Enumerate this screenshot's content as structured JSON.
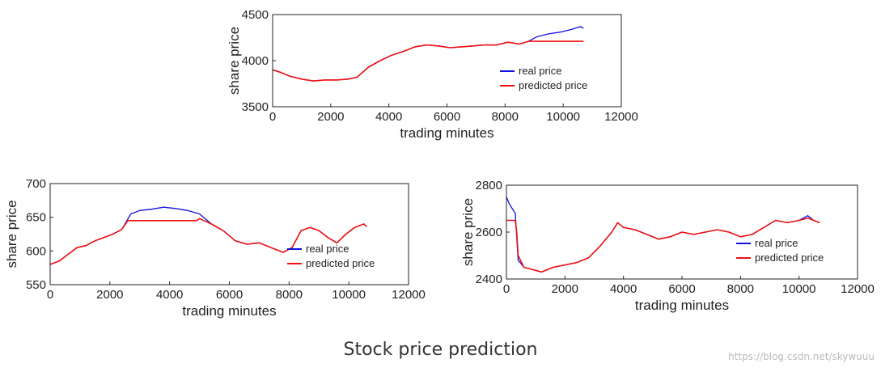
{
  "caption": "Stock price prediction",
  "watermark": "https://blog.csdn.net/skywuuu",
  "colors": {
    "real": "#1010e0",
    "predicted": "#ee1111",
    "axis": "#222222"
  },
  "chart_data": [
    {
      "type": "line",
      "xlabel": "trading minutes",
      "ylabel": "share price",
      "xlim": [
        0,
        12000
      ],
      "ylim": [
        3500,
        4500
      ],
      "xticks": [
        0,
        2000,
        4000,
        6000,
        8000,
        10000,
        12000
      ],
      "yticks": [
        3500,
        4000,
        4500
      ],
      "legend": {
        "position": "bottom-right",
        "entries": [
          "real price",
          "predicted price"
        ]
      },
      "series": [
        {
          "name": "real price",
          "x": [
            0,
            300,
            600,
            1000,
            1400,
            1800,
            2200,
            2600,
            2900,
            3300,
            3700,
            4100,
            4500,
            4900,
            5300,
            5700,
            6100,
            6500,
            6900,
            7300,
            7700,
            8100,
            8500,
            8800,
            9100,
            9500,
            9900,
            10300,
            10600,
            10700
          ],
          "y": [
            3900,
            3870,
            3830,
            3800,
            3780,
            3790,
            3790,
            3800,
            3820,
            3930,
            4000,
            4060,
            4100,
            4150,
            4170,
            4160,
            4140,
            4150,
            4160,
            4170,
            4170,
            4200,
            4180,
            4210,
            4260,
            4290,
            4310,
            4340,
            4370,
            4350
          ]
        },
        {
          "name": "predicted price",
          "x": [
            0,
            300,
            600,
            1000,
            1400,
            1800,
            2200,
            2600,
            2900,
            3300,
            3700,
            4100,
            4500,
            4900,
            5300,
            5700,
            6100,
            6500,
            6900,
            7300,
            7700,
            8100,
            8500,
            8800,
            9100,
            9500,
            9900,
            10300,
            10600,
            10700
          ],
          "y": [
            3900,
            3870,
            3830,
            3800,
            3780,
            3790,
            3790,
            3800,
            3820,
            3930,
            4000,
            4060,
            4100,
            4150,
            4170,
            4160,
            4140,
            4150,
            4160,
            4170,
            4170,
            4200,
            4180,
            4210,
            4210,
            4210,
            4210,
            4210,
            4210,
            4210
          ]
        }
      ]
    },
    {
      "type": "line",
      "xlabel": "trading minutes",
      "ylabel": "share price",
      "xlim": [
        0,
        12000
      ],
      "ylim": [
        550,
        700
      ],
      "xticks": [
        0,
        2000,
        4000,
        6000,
        8000,
        10000,
        12000
      ],
      "yticks": [
        550,
        600,
        650,
        700
      ],
      "legend": {
        "position": "bottom-right",
        "entries": [
          "real price",
          "predicted price"
        ]
      },
      "series": [
        {
          "name": "real price",
          "x": [
            0,
            300,
            600,
            900,
            1200,
            1500,
            1800,
            2100,
            2400,
            2700,
            3000,
            3400,
            3800,
            4200,
            4600,
            5000,
            5400,
            5800,
            6200,
            6600,
            7000,
            7400,
            7800,
            8100,
            8400,
            8700,
            9000,
            9300,
            9600,
            9900,
            10200,
            10500,
            10600
          ],
          "y": [
            580,
            585,
            595,
            605,
            608,
            615,
            620,
            625,
            632,
            655,
            660,
            662,
            665,
            663,
            660,
            655,
            640,
            630,
            615,
            610,
            612,
            605,
            598,
            605,
            630,
            635,
            630,
            620,
            612,
            625,
            635,
            640,
            636
          ]
        },
        {
          "name": "predicted price",
          "x": [
            0,
            300,
            600,
            900,
            1200,
            1500,
            1800,
            2100,
            2400,
            2600,
            2800,
            3400,
            4000,
            4600,
            4900,
            5000,
            5400,
            5800,
            6200,
            6600,
            7000,
            7400,
            7800,
            8100,
            8400,
            8700,
            9000,
            9300,
            9600,
            9900,
            10200,
            10500,
            10600
          ],
          "y": [
            580,
            585,
            595,
            605,
            608,
            615,
            620,
            625,
            632,
            645,
            645,
            645,
            645,
            645,
            645,
            648,
            640,
            630,
            615,
            610,
            612,
            605,
            598,
            605,
            630,
            635,
            630,
            620,
            612,
            625,
            635,
            640,
            636
          ]
        }
      ]
    },
    {
      "type": "line",
      "xlabel": "trading minutes",
      "ylabel": "share price",
      "xlim": [
        0,
        12000
      ],
      "ylim": [
        2400,
        2800
      ],
      "xticks": [
        0,
        2000,
        4000,
        6000,
        8000,
        10000,
        12000
      ],
      "yticks": [
        2400,
        2600,
        2800
      ],
      "legend": {
        "position": "bottom-right",
        "entries": [
          "real price",
          "predicted price"
        ]
      },
      "series": [
        {
          "name": "real price",
          "x": [
            0,
            100,
            200,
            300,
            400,
            600,
            900,
            1200,
            1600,
            2000,
            2400,
            2800,
            3200,
            3600,
            3800,
            4000,
            4400,
            4800,
            5200,
            5600,
            6000,
            6400,
            6800,
            7200,
            7600,
            8000,
            8400,
            8800,
            9200,
            9600,
            10000,
            10300,
            10500,
            10700
          ],
          "y": [
            2750,
            2720,
            2700,
            2680,
            2480,
            2450,
            2440,
            2430,
            2450,
            2460,
            2470,
            2490,
            2540,
            2600,
            2640,
            2620,
            2610,
            2590,
            2570,
            2580,
            2600,
            2590,
            2600,
            2610,
            2600,
            2580,
            2590,
            2620,
            2650,
            2640,
            2650,
            2670,
            2650,
            2640
          ]
        },
        {
          "name": "predicted price",
          "x": [
            0,
            100,
            200,
            300,
            350,
            400,
            600,
            900,
            1200,
            1600,
            2000,
            2400,
            2800,
            3200,
            3600,
            3800,
            4000,
            4400,
            4800,
            5200,
            5600,
            6000,
            6400,
            6800,
            7200,
            7600,
            8000,
            8400,
            8800,
            9200,
            9600,
            10000,
            10300,
            10500,
            10700
          ],
          "y": [
            2650,
            2650,
            2650,
            2650,
            2600,
            2500,
            2450,
            2440,
            2430,
            2450,
            2460,
            2470,
            2490,
            2540,
            2600,
            2640,
            2620,
            2610,
            2590,
            2570,
            2580,
            2600,
            2590,
            2600,
            2610,
            2600,
            2580,
            2590,
            2620,
            2650,
            2640,
            2650,
            2660,
            2650,
            2640
          ]
        }
      ]
    }
  ]
}
